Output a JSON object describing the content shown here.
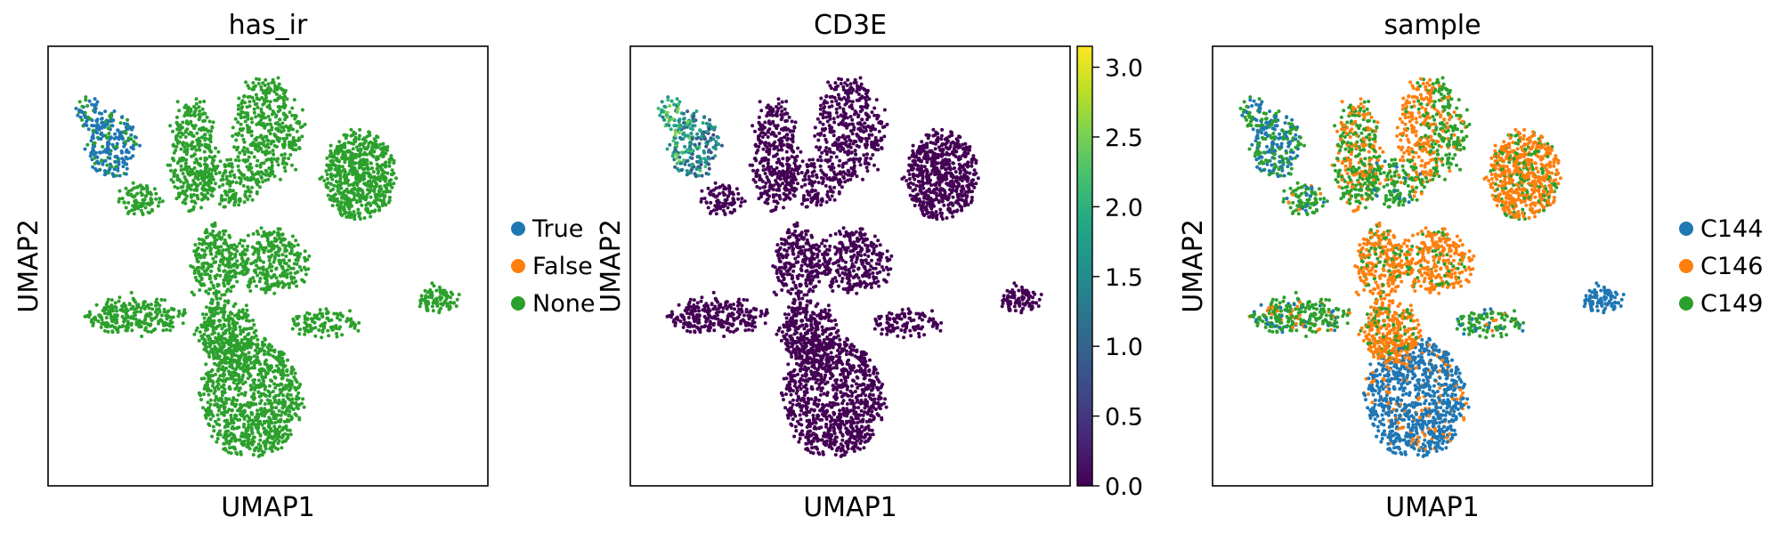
{
  "chart_data": [
    {
      "type": "scatter",
      "title": "has_ir",
      "xlabel": "UMAP1",
      "ylabel": "UMAP2",
      "color_by": "categorical",
      "legend_position": "right",
      "categories": [
        {
          "name": "True",
          "color": "#1f77b4"
        },
        {
          "name": "False",
          "color": "#ff7f0e"
        },
        {
          "name": "None",
          "color": "#2ca02c"
        }
      ]
    },
    {
      "type": "scatter",
      "title": "CD3E",
      "xlabel": "UMAP1",
      "ylabel": "UMAP2",
      "color_by": "continuous",
      "colormap": "viridis",
      "colorbar": {
        "range": [
          0.0,
          3.15
        ],
        "ticks": [
          "0.0",
          "0.5",
          "1.0",
          "1.5",
          "2.0",
          "2.5",
          "3.0"
        ]
      }
    },
    {
      "type": "scatter",
      "title": "sample",
      "xlabel": "UMAP1",
      "ylabel": "UMAP2",
      "color_by": "categorical",
      "legend_position": "right",
      "categories": [
        {
          "name": "C144",
          "color": "#1f77b4"
        },
        {
          "name": "C146",
          "color": "#ff7f0e"
        },
        {
          "name": "C149",
          "color": "#2ca02c"
        }
      ]
    }
  ]
}
